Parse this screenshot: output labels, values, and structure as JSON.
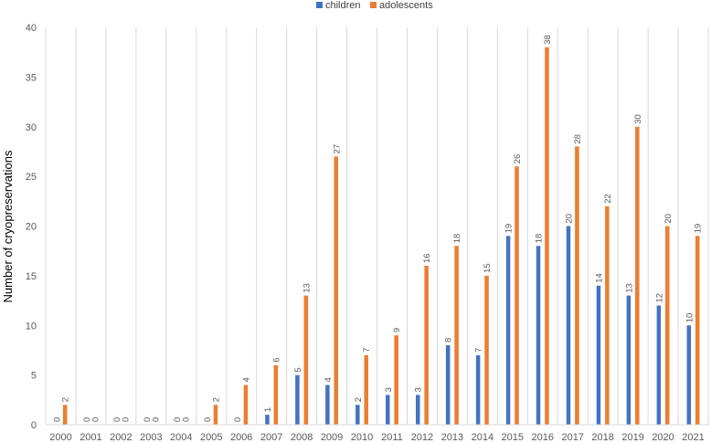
{
  "chart_data": {
    "type": "bar",
    "categories": [
      "2000",
      "2001",
      "2002",
      "2003",
      "2004",
      "2005",
      "2006",
      "2007",
      "2008",
      "2009",
      "2010",
      "2011",
      "2012",
      "2013",
      "2014",
      "2015",
      "2016",
      "2017",
      "2018",
      "2019",
      "2020",
      "2021"
    ],
    "series": [
      {
        "name": "children",
        "color": "#4472C4",
        "values": [
          0,
          0,
          0,
          0,
          0,
          0,
          0,
          1,
          5,
          4,
          2,
          3,
          3,
          8,
          7,
          19,
          18,
          20,
          14,
          13,
          12,
          10
        ]
      },
      {
        "name": "adolescents",
        "color": "#ED7D31",
        "values": [
          2,
          0,
          0,
          0,
          0,
          2,
          4,
          6,
          13,
          27,
          7,
          9,
          16,
          18,
          15,
          26,
          38,
          28,
          22,
          30,
          20,
          19
        ]
      }
    ],
    "ylabel": "Number of cryopreservations",
    "xlabel": "",
    "ylim": [
      0,
      40
    ],
    "yticks": [
      0,
      5,
      10,
      15,
      20,
      25,
      30,
      35,
      40
    ],
    "grid": "vertical category separators",
    "legend_position": "top-center",
    "data_labels": "rotated vertical above bars"
  }
}
